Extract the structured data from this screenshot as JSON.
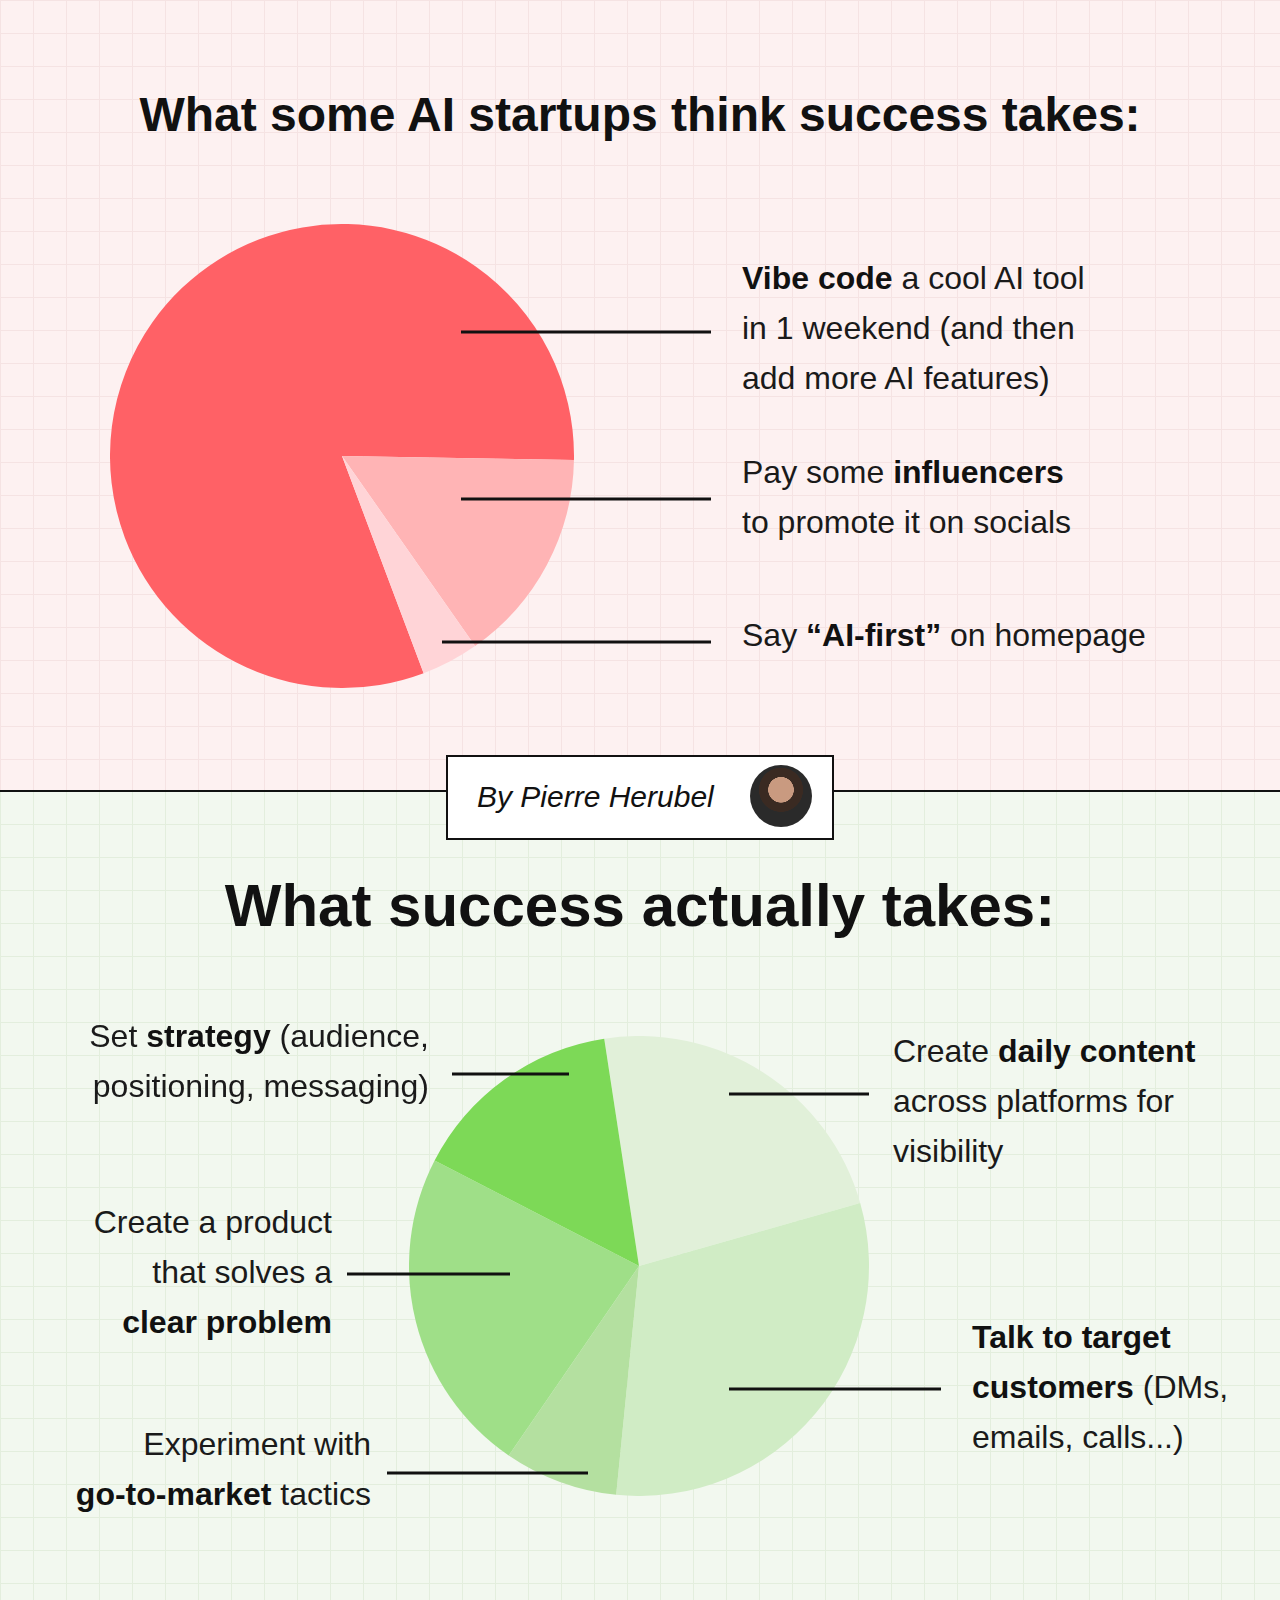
{
  "chart_data": [
    {
      "type": "pie",
      "title": "What some AI startups think success takes:",
      "categories": [
        "Vibe code a cool AI tool\nin 1 weekend (and then\nadd more AI features)",
        "Pay some influencers\nto promote it on socials",
        "Say “AI-first” on homepage"
      ],
      "emphasis": [
        "Vibe code",
        "influencers",
        "“AI-first”"
      ],
      "values": [
        81,
        15,
        4
      ],
      "colors": [
        "#ff6166",
        "#ffb4b5",
        "#ffd4d7"
      ]
    },
    {
      "type": "pie",
      "title": "What success actually takes:",
      "categories": [
        "Create daily content\nacross platforms for\nvisibility",
        "Talk to target\ncustomers (DMs,\nemails, calls...)",
        "Experiment with\ngo-to-market tactics",
        "Create a product\nthat solves a\nclear problem",
        "Set strategy (audience,\npositioning, messaging)"
      ],
      "emphasis": [
        "daily content",
        "Talk to target\ncustomers",
        "go-to-market",
        "clear problem",
        "strategy"
      ],
      "values": [
        23,
        31,
        8,
        23,
        15
      ],
      "colors": [
        "#e1f0d9",
        "#d0ecc5",
        "#b4e0a0",
        "#9fdf88",
        "#7dd957"
      ]
    }
  ],
  "byline": "By Pierre Herubel"
}
